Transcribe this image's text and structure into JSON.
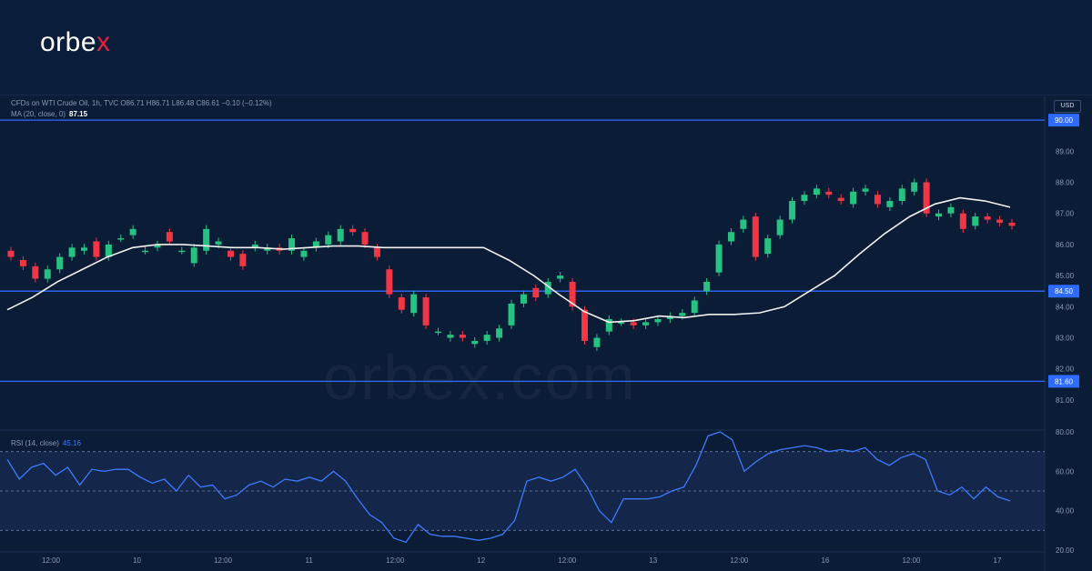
{
  "brand": {
    "name_main": "orbe",
    "name_accent": "x"
  },
  "watermark": "orbex.com",
  "instrument_line": "CFDs on WTI Crude Oil, 1h, TVC  O86.71  H86.71  L86.48  C86.61  −0.10 (−0.12%)",
  "ma_label": "MA (20, close, 0)",
  "ma_value": "87.15",
  "rsi_label": "RSI (14, close)",
  "rsi_value": "45.16",
  "currency": "USD",
  "colors": {
    "up": "#26c281",
    "down": "#f23645",
    "ma": "#f2f2f2",
    "level": "#2f6bff",
    "rsi": "#3d7bff",
    "bg": "#0b1c36"
  },
  "chart_data": [
    {
      "type": "candlestick",
      "ylim": [
        80.5,
        90.5
      ],
      "y_ticks": [
        81.0,
        82.0,
        83.0,
        84.0,
        85.0,
        86.0,
        87.0,
        88.0,
        89.0
      ],
      "y_tick_labels": [
        "81.00",
        "82.00",
        "83.00",
        "84.00",
        "85.00",
        "86.00",
        "87.00",
        "88.00",
        "89.00"
      ],
      "x_labels": [
        "12:00",
        "10",
        "12:00",
        "11",
        "12:00",
        "12",
        "12:00",
        "13",
        "12:00",
        "16",
        "12:00",
        "17"
      ],
      "levels": [
        {
          "value": 90.0,
          "label": "90.00"
        },
        {
          "value": 84.5,
          "label": "84.50"
        },
        {
          "value": 81.6,
          "label": "81.60"
        }
      ],
      "series": [
        {
          "name": "MA (20, close, 0)",
          "type": "line",
          "values": [
            83.9,
            84.3,
            84.8,
            85.2,
            85.6,
            85.9,
            86.0,
            86.0,
            85.95,
            85.9,
            85.9,
            85.85,
            85.9,
            85.95,
            85.95,
            85.9,
            85.9,
            85.9,
            85.9,
            85.9,
            85.5,
            85.0,
            84.4,
            83.85,
            83.5,
            83.55,
            83.7,
            83.65,
            83.75,
            83.75,
            83.8,
            84.0,
            84.5,
            85.0,
            85.7,
            86.35,
            86.9,
            87.3,
            87.5,
            87.4,
            87.2
          ]
        },
        {
          "name": "Price",
          "type": "candle",
          "candles": [
            [
              85.8,
              85.6
            ],
            [
              85.5,
              85.3
            ],
            [
              85.3,
              84.9
            ],
            [
              84.9,
              85.2
            ],
            [
              85.2,
              85.6
            ],
            [
              85.6,
              85.9
            ],
            [
              85.8,
              85.9
            ],
            [
              86.1,
              85.6
            ],
            [
              85.6,
              86.0
            ],
            [
              86.2,
              86.2
            ],
            [
              86.3,
              86.5
            ],
            [
              85.8,
              85.8
            ],
            [
              85.9,
              86.0
            ],
            [
              86.4,
              86.1
            ],
            [
              85.8,
              85.8
            ],
            [
              85.4,
              85.9
            ],
            [
              85.8,
              86.5
            ],
            [
              86.0,
              86.1
            ],
            [
              85.8,
              85.6
            ],
            [
              85.7,
              85.3
            ],
            [
              85.9,
              86.0
            ],
            [
              85.8,
              85.9
            ],
            [
              85.9,
              85.8
            ],
            [
              85.8,
              86.2
            ],
            [
              85.6,
              85.8
            ],
            [
              85.9,
              86.1
            ],
            [
              86.0,
              86.3
            ],
            [
              86.1,
              86.5
            ],
            [
              86.5,
              86.4
            ],
            [
              86.4,
              86.0
            ],
            [
              85.9,
              85.6
            ],
            [
              85.2,
              84.4
            ],
            [
              84.3,
              83.9
            ],
            [
              83.8,
              84.4
            ],
            [
              84.3,
              83.4
            ],
            [
              83.2,
              83.2
            ],
            [
              83.0,
              83.1
            ],
            [
              83.1,
              83.0
            ],
            [
              82.8,
              82.9
            ],
            [
              82.9,
              83.1
            ],
            [
              83.0,
              83.3
            ],
            [
              83.4,
              84.1
            ],
            [
              84.1,
              84.4
            ],
            [
              84.6,
              84.3
            ],
            [
              84.4,
              84.8
            ],
            [
              84.9,
              85.0
            ],
            [
              84.8,
              84.0
            ],
            [
              83.9,
              82.9
            ],
            [
              82.7,
              83.0
            ],
            [
              83.2,
              83.6
            ],
            [
              83.5,
              83.5
            ],
            [
              83.5,
              83.4
            ],
            [
              83.4,
              83.5
            ],
            [
              83.5,
              83.6
            ],
            [
              83.6,
              83.7
            ],
            [
              83.7,
              83.8
            ],
            [
              83.8,
              84.2
            ],
            [
              84.5,
              84.8
            ],
            [
              85.1,
              86.0
            ],
            [
              86.1,
              86.4
            ],
            [
              86.5,
              86.8
            ],
            [
              86.9,
              85.6
            ],
            [
              85.7,
              86.2
            ],
            [
              86.3,
              86.8
            ],
            [
              86.8,
              87.4
            ],
            [
              87.4,
              87.6
            ],
            [
              87.6,
              87.8
            ],
            [
              87.7,
              87.6
            ],
            [
              87.5,
              87.4
            ],
            [
              87.3,
              87.7
            ],
            [
              87.7,
              87.8
            ],
            [
              87.6,
              87.3
            ],
            [
              87.2,
              87.4
            ],
            [
              87.4,
              87.8
            ],
            [
              87.7,
              88.0
            ],
            [
              88.0,
              87.0
            ],
            [
              86.9,
              87.0
            ],
            [
              87.0,
              87.2
            ],
            [
              87.0,
              86.5
            ],
            [
              86.6,
              86.9
            ],
            [
              86.9,
              86.8
            ],
            [
              86.8,
              86.7
            ],
            [
              86.7,
              86.6
            ]
          ]
        }
      ]
    },
    {
      "type": "line",
      "title": "RSI (14, close)",
      "ylim": [
        20,
        80
      ],
      "y_ticks": [
        20,
        40,
        60,
        80
      ],
      "y_tick_labels": [
        "20.00",
        "40.00",
        "60.00",
        "80.00"
      ],
      "bands": [
        30,
        50,
        70
      ],
      "series": [
        {
          "name": "RSI (14, close)",
          "values": [
            66,
            56,
            62,
            64,
            58,
            62,
            53,
            61,
            60,
            61,
            61,
            57,
            54,
            56,
            50,
            58,
            52,
            53,
            46,
            48,
            53,
            55,
            52,
            56,
            55,
            57,
            55,
            60,
            55,
            46,
            38,
            34,
            26,
            24,
            33,
            28,
            27,
            27,
            26,
            25,
            26,
            28,
            35,
            55,
            57,
            55,
            57,
            61,
            52,
            40,
            34,
            46,
            46,
            46,
            47,
            50,
            52,
            63,
            78,
            80,
            76,
            60,
            65,
            69,
            71,
            72,
            73,
            72,
            70,
            71,
            70,
            72,
            66,
            63,
            67,
            69,
            66,
            50,
            48,
            52,
            46,
            52,
            47,
            45
          ]
        }
      ]
    }
  ]
}
